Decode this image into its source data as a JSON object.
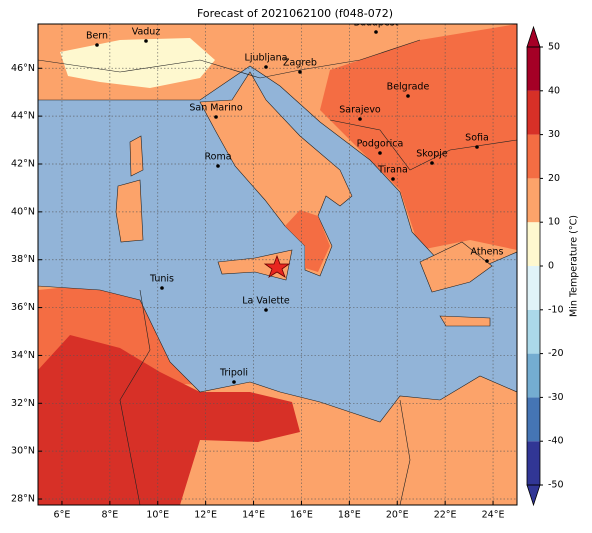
{
  "title": "Forecast of 2021062100 (f048-072)",
  "map": {
    "xlim": [
      5,
      25
    ],
    "ylim": [
      27.75,
      47.85
    ],
    "xticks": [
      {
        "value": 6,
        "label": "6°E"
      },
      {
        "value": 8,
        "label": "8°E"
      },
      {
        "value": 10,
        "label": "10°E"
      },
      {
        "value": 12,
        "label": "12°E"
      },
      {
        "value": 14,
        "label": "14°E"
      },
      {
        "value": 16,
        "label": "16°E"
      },
      {
        "value": 18,
        "label": "18°E"
      },
      {
        "value": 20,
        "label": "20°E"
      },
      {
        "value": 22,
        "label": "22°E"
      },
      {
        "value": 24,
        "label": "24°E"
      }
    ],
    "yticks": [
      {
        "value": 28,
        "label": "28°N"
      },
      {
        "value": 30,
        "label": "30°N"
      },
      {
        "value": 32,
        "label": "32°N"
      },
      {
        "value": 34,
        "label": "34°N"
      },
      {
        "value": 36,
        "label": "36°N"
      },
      {
        "value": 38,
        "label": "38°N"
      },
      {
        "value": 40,
        "label": "40°N"
      },
      {
        "value": 42,
        "label": "42°N"
      },
      {
        "value": 44,
        "label": "44°N"
      },
      {
        "value": 46,
        "label": "46°N"
      }
    ],
    "grid": true
  },
  "cities": [
    "Bern",
    "Vaduz",
    "Budapest",
    "Ljubljana",
    "Zagreb",
    "Belgrade",
    "San Marino",
    "Sarajevo",
    "Sofia",
    "Podgorica",
    "Skopje",
    "Roma",
    "Tirana",
    "Athens",
    "Tunis",
    "La Valette",
    "Tripoli"
  ],
  "colorbar": {
    "label": "Min Temperature (°C)",
    "lim": [
      -50,
      50
    ],
    "ticks": [
      -50,
      -40,
      -30,
      -20,
      -10,
      0,
      10,
      20,
      30,
      40,
      50
    ],
    "colors": [
      "#313695",
      "#4575b4",
      "#74add1",
      "#abd9e9",
      "#e0f3f8",
      "#fef8cf",
      "#fca36a",
      "#f46d43",
      "#d73027",
      "#a50026"
    ]
  }
}
